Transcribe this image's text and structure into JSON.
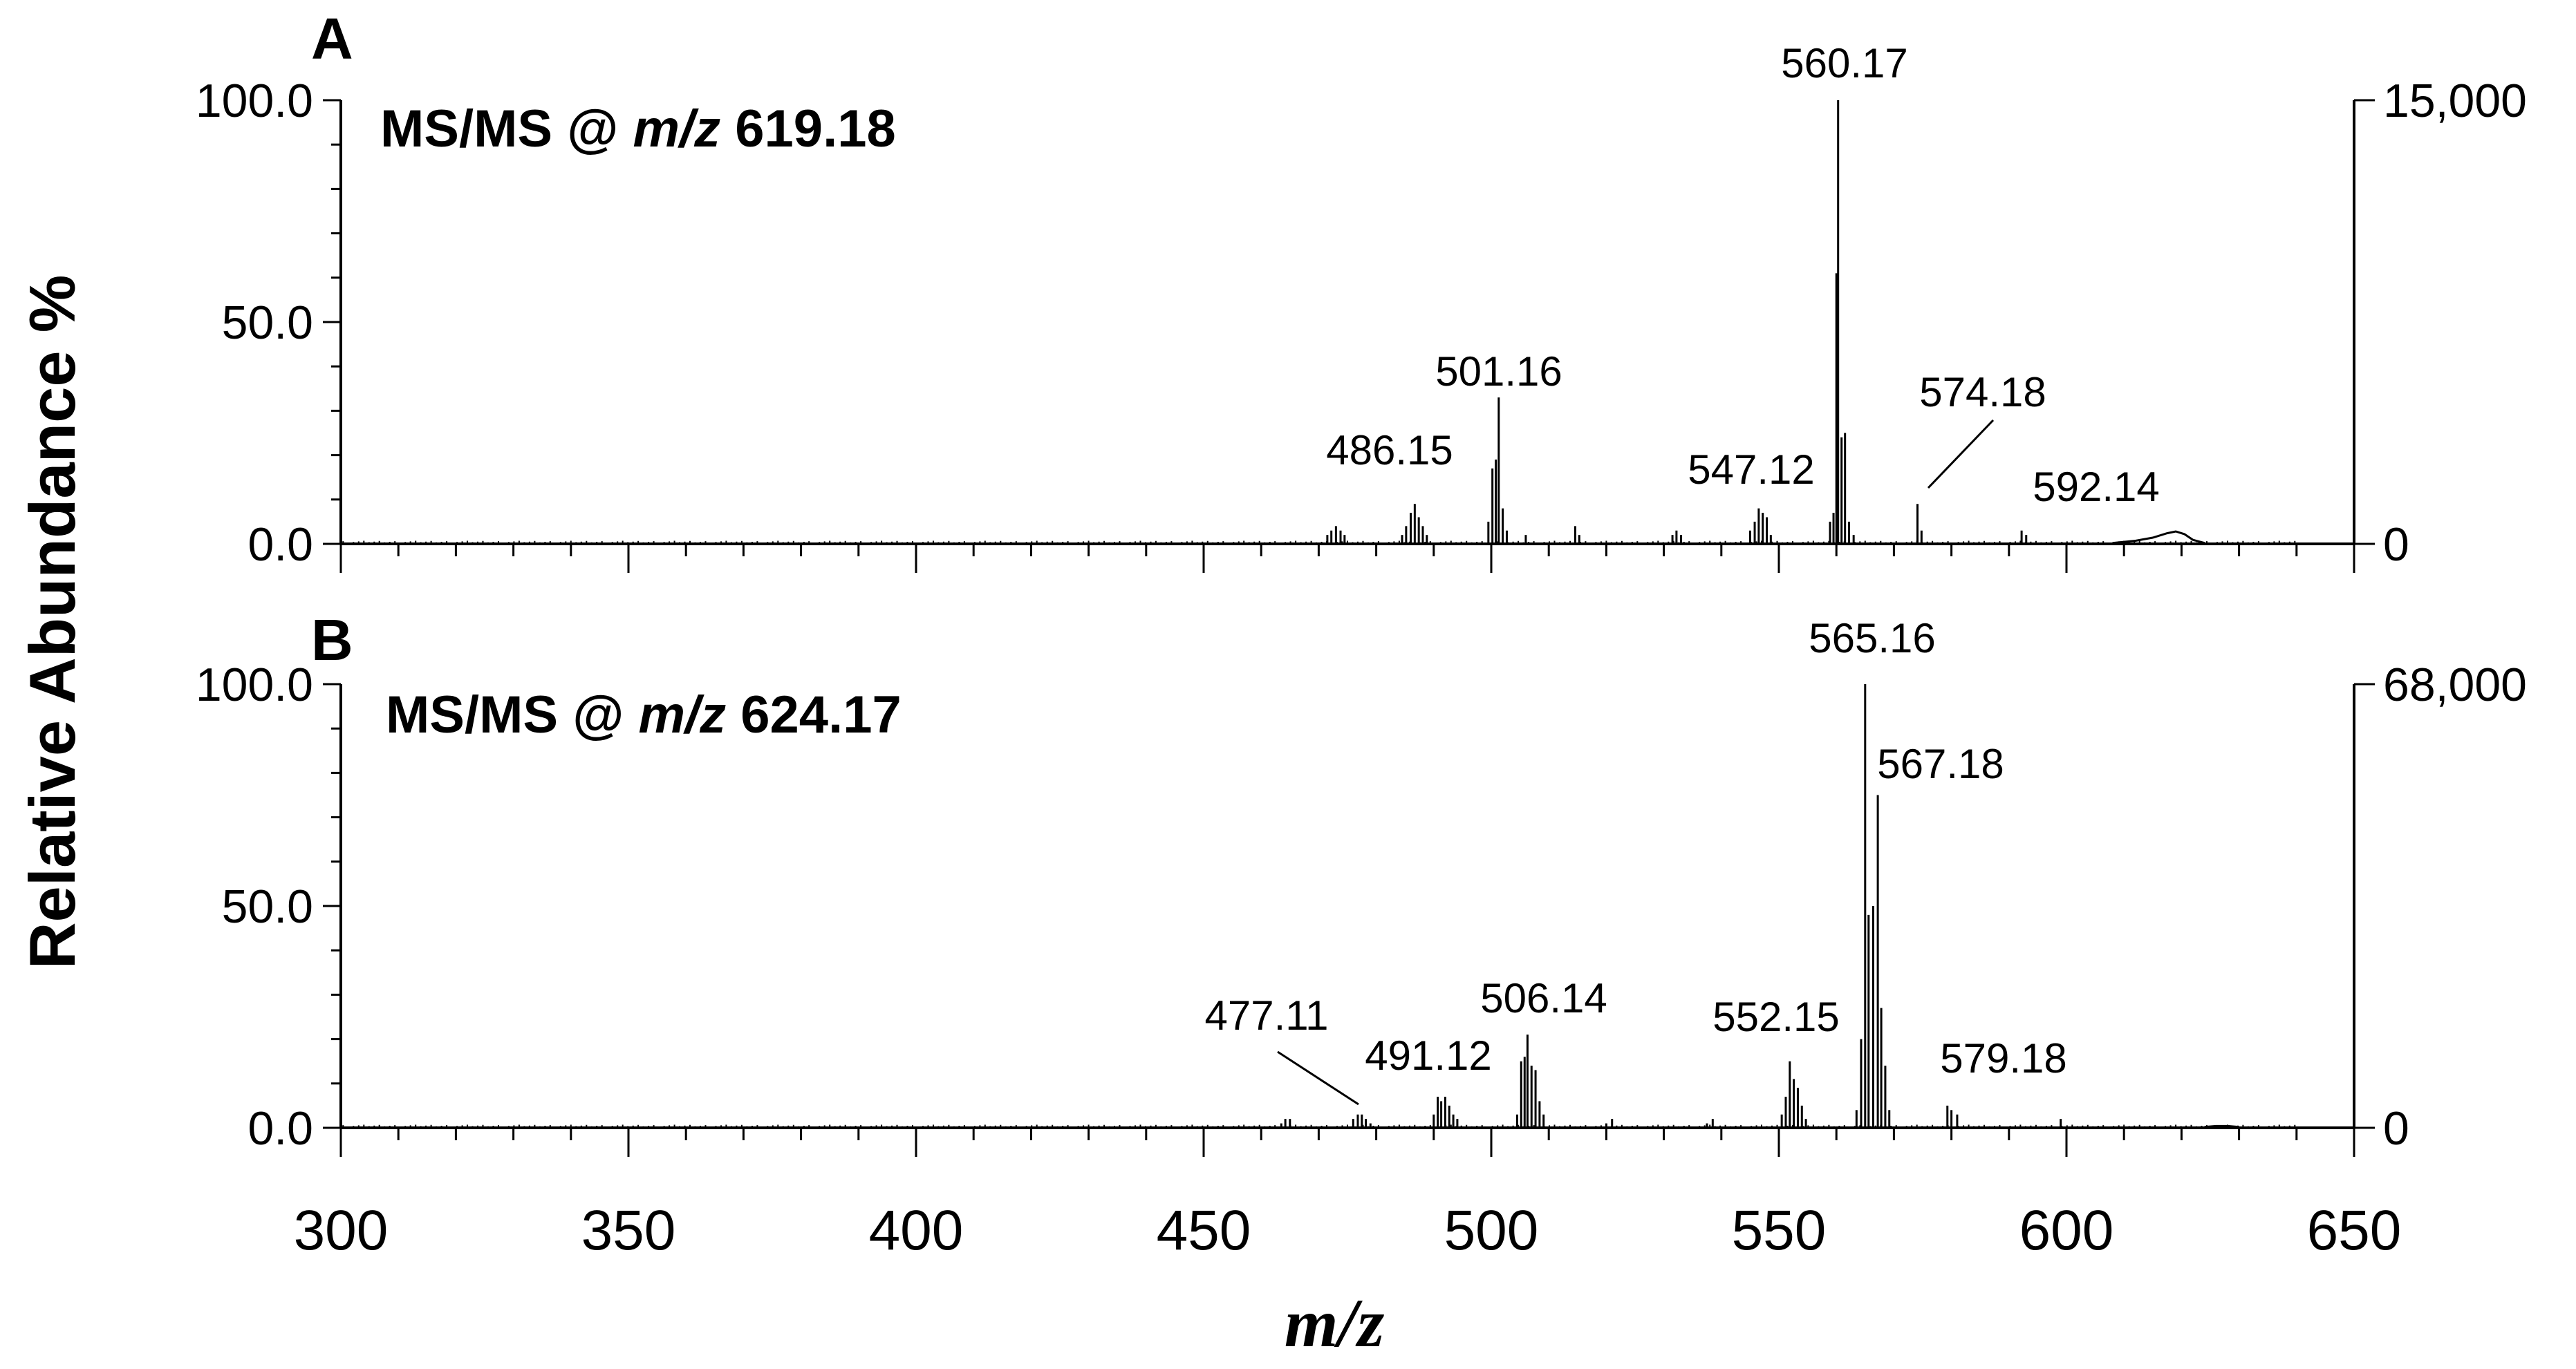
{
  "chart_data": {
    "type": "bar",
    "ylabel": "Relative Abundance %",
    "xlabel": "m/z",
    "x_ticks": [
      "300",
      "350",
      "400",
      "450",
      "500",
      "550",
      "600",
      "650"
    ],
    "xlim": [
      300,
      650
    ],
    "grid": false,
    "panels": [
      {
        "letter": "A",
        "subtitle": {
          "prefix": "MS/MS @ ",
          "italic": "m/z",
          "value": " 619.18"
        },
        "ylim": [
          0,
          100
        ],
        "y_ticks": [
          "0.0",
          "50.0",
          "100.0"
        ],
        "right_axis_ticks": [
          "0",
          "15,000"
        ],
        "labels": [
          {
            "text": "486.15",
            "mz": 486.15
          },
          {
            "text": "501.16",
            "mz": 501.16
          },
          {
            "text": "547.12",
            "mz": 547.12
          },
          {
            "text": "560.17",
            "mz": 560.17
          },
          {
            "text": "574.18",
            "mz": 574.18
          },
          {
            "text": "592.14",
            "mz": 592.14
          }
        ],
        "peaks": [
          [
            471.5,
            2
          ],
          [
            472.2,
            3
          ],
          [
            473.0,
            4
          ],
          [
            473.8,
            3
          ],
          [
            474.5,
            2
          ],
          [
            484.5,
            2
          ],
          [
            485.2,
            4
          ],
          [
            486.0,
            7
          ],
          [
            486.7,
            9
          ],
          [
            487.4,
            6
          ],
          [
            488.1,
            4
          ],
          [
            488.8,
            2
          ],
          [
            499.5,
            5
          ],
          [
            500.2,
            17
          ],
          [
            500.8,
            19
          ],
          [
            501.3,
            33
          ],
          [
            502.0,
            8
          ],
          [
            502.7,
            3
          ],
          [
            506.0,
            2
          ],
          [
            514.6,
            4
          ],
          [
            515.3,
            2
          ],
          [
            531.5,
            2
          ],
          [
            532.2,
            3
          ],
          [
            533.0,
            2
          ],
          [
            545.0,
            3
          ],
          [
            545.8,
            5
          ],
          [
            546.5,
            8
          ],
          [
            547.2,
            7
          ],
          [
            547.9,
            6
          ],
          [
            548.6,
            2
          ],
          [
            558.9,
            5
          ],
          [
            559.5,
            7
          ],
          [
            560.0,
            61
          ],
          [
            560.3,
            100
          ],
          [
            560.9,
            24
          ],
          [
            561.5,
            25
          ],
          [
            562.2,
            5
          ],
          [
            563.0,
            2
          ],
          [
            574.1,
            9
          ],
          [
            574.8,
            3
          ],
          [
            592.2,
            3
          ],
          [
            593.0,
            2
          ]
        ],
        "hump": [
          [
            608,
            0.2
          ],
          [
            612,
            0.7
          ],
          [
            615,
            1.4
          ],
          [
            617.5,
            2.4
          ],
          [
            619,
            2.8
          ],
          [
            620.5,
            2.2
          ],
          [
            622,
            0.9
          ],
          [
            624,
            0.2
          ]
        ]
      },
      {
        "letter": "B",
        "subtitle": {
          "prefix": "MS/MS @ ",
          "italic": "m/z",
          "value": " 624.17"
        },
        "ylim": [
          0,
          100
        ],
        "y_ticks": [
          "0.0",
          "50.0",
          "100.0"
        ],
        "right_axis_ticks": [
          "0",
          "68,000"
        ],
        "labels": [
          {
            "text": "477.11",
            "mz": 477.11
          },
          {
            "text": "491.12",
            "mz": 491.12
          },
          {
            "text": "506.14",
            "mz": 506.14
          },
          {
            "text": "552.15",
            "mz": 552.15
          },
          {
            "text": "565.16",
            "mz": 565.16
          },
          {
            "text": "567.18",
            "mz": 567.18
          },
          {
            "text": "579.18",
            "mz": 579.18
          }
        ],
        "peaks": [
          [
            463.5,
            1
          ],
          [
            464.2,
            2
          ],
          [
            465.0,
            2
          ],
          [
            476.0,
            2
          ],
          [
            476.8,
            3
          ],
          [
            477.5,
            3
          ],
          [
            478.2,
            2
          ],
          [
            479.0,
            1
          ],
          [
            490.0,
            3
          ],
          [
            490.7,
            7
          ],
          [
            491.3,
            6
          ],
          [
            492.0,
            7
          ],
          [
            492.7,
            5
          ],
          [
            493.4,
            3
          ],
          [
            494.1,
            2
          ],
          [
            504.5,
            3
          ],
          [
            505.2,
            15
          ],
          [
            505.8,
            16
          ],
          [
            506.3,
            21
          ],
          [
            507.0,
            14
          ],
          [
            507.7,
            13
          ],
          [
            508.4,
            6
          ],
          [
            509.1,
            3
          ],
          [
            520.0,
            1
          ],
          [
            521.0,
            2
          ],
          [
            537.5,
            1
          ],
          [
            538.5,
            2
          ],
          [
            550.5,
            3
          ],
          [
            551.2,
            7
          ],
          [
            551.9,
            15
          ],
          [
            552.6,
            11
          ],
          [
            553.3,
            9
          ],
          [
            554.0,
            5
          ],
          [
            554.7,
            2
          ],
          [
            563.5,
            4
          ],
          [
            564.3,
            20
          ],
          [
            565.0,
            100
          ],
          [
            565.6,
            48
          ],
          [
            566.4,
            50
          ],
          [
            567.2,
            75
          ],
          [
            567.8,
            27
          ],
          [
            568.5,
            14
          ],
          [
            569.2,
            4
          ],
          [
            579.3,
            5
          ],
          [
            580.0,
            4
          ],
          [
            581.0,
            3
          ],
          [
            599.0,
            2
          ]
        ],
        "hump": [
          [
            624,
            0.2
          ],
          [
            626,
            0.4
          ],
          [
            628,
            0.4
          ],
          [
            630,
            0.2
          ]
        ]
      }
    ]
  }
}
